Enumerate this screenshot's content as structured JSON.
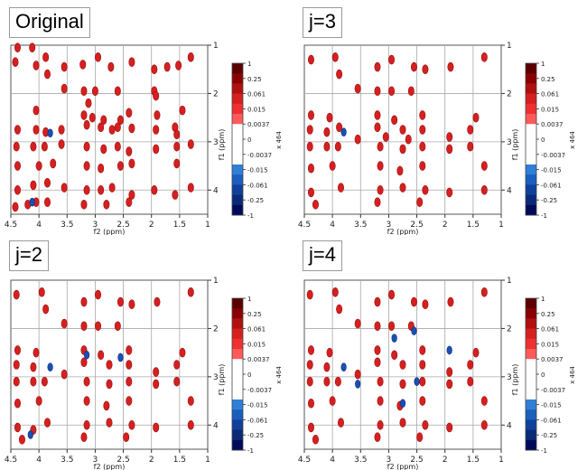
{
  "panels": [
    {
      "label": "Original"
    },
    {
      "label": "j=3"
    },
    {
      "label": "j=2"
    },
    {
      "label": "j=4"
    }
  ],
  "colorbar": {
    "scale_label": "x 464",
    "levels": [
      "1",
      "0.25",
      "0.061",
      "0.015",
      "0.0037",
      "0",
      "-0.0037",
      "-0.015",
      "-0.061",
      "-0.25",
      "-1"
    ],
    "colors": [
      "#5a0000",
      "#8b0000",
      "#b01010",
      "#d62020",
      "#ef3030",
      "#ff5a5a",
      "#ffffff",
      "#ffffff",
      "#ffffff",
      "#ffffff",
      "#2f7fd6",
      "#1a5fc0",
      "#10409a",
      "#0a2a78",
      "#000a5a"
    ]
  },
  "colors": {
    "positive": "#d42020",
    "negative": "#1a4fb5",
    "grid": "#a8a8a8"
  },
  "chart_data": [
    {
      "type": "scatter",
      "title": "Original",
      "xlabel": "f2 (ppm)",
      "ylabel": "f1 (ppm)",
      "xlim": [
        4.5,
        1
      ],
      "ylim": [
        1,
        4.5
      ],
      "x_reversed": true,
      "y_reversed": true,
      "xticks": [
        "4.5",
        "4",
        "3.5",
        "3",
        "2.5",
        "2",
        "1.5",
        "1"
      ],
      "yticks": [
        "1",
        "2",
        "3",
        "4"
      ],
      "grid": true,
      "peaks": [
        [
          4.38,
          1.05
        ],
        [
          4.12,
          1.05
        ],
        [
          4.42,
          1.35
        ],
        [
          4.05,
          1.42
        ],
        [
          3.88,
          1.25
        ],
        [
          3.85,
          1.6
        ],
        [
          3.55,
          1.45
        ],
        [
          3.22,
          1.4
        ],
        [
          2.95,
          1.25
        ],
        [
          2.72,
          1.45
        ],
        [
          2.35,
          1.35
        ],
        [
          1.95,
          1.5
        ],
        [
          1.72,
          1.45
        ],
        [
          1.52,
          1.42
        ],
        [
          1.3,
          1.25
        ],
        [
          3.55,
          1.9
        ],
        [
          3.2,
          1.95
        ],
        [
          3.0,
          1.95
        ],
        [
          2.6,
          1.95
        ],
        [
          1.95,
          1.95
        ],
        [
          1.92,
          2.05
        ],
        [
          3.12,
          2.2
        ],
        [
          4.05,
          2.35
        ],
        [
          3.2,
          2.45
        ],
        [
          3.05,
          2.5
        ],
        [
          2.85,
          2.55
        ],
        [
          2.55,
          2.55
        ],
        [
          2.4,
          2.4
        ],
        [
          1.9,
          2.45
        ],
        [
          1.45,
          2.35
        ],
        [
          4.38,
          2.75
        ],
        [
          4.05,
          2.75
        ],
        [
          3.88,
          2.8
        ],
        [
          3.6,
          2.75
        ],
        [
          3.15,
          2.65
        ],
        [
          2.9,
          2.7
        ],
        [
          2.7,
          2.75
        ],
        [
          2.6,
          2.7
        ],
        [
          2.35,
          2.72
        ],
        [
          1.92,
          2.75
        ],
        [
          1.58,
          2.7
        ],
        [
          1.55,
          2.85
        ],
        [
          4.4,
          3.1
        ],
        [
          4.1,
          3.1
        ],
        [
          3.9,
          3.1
        ],
        [
          3.6,
          3.05
        ],
        [
          3.15,
          3.1
        ],
        [
          2.85,
          3.15
        ],
        [
          2.6,
          3.1
        ],
        [
          2.4,
          3.2
        ],
        [
          1.92,
          3.15
        ],
        [
          1.55,
          3.1
        ],
        [
          1.3,
          3.05
        ],
        [
          4.38,
          3.5
        ],
        [
          4.0,
          3.5
        ],
        [
          3.75,
          3.45
        ],
        [
          3.15,
          3.5
        ],
        [
          2.9,
          3.55
        ],
        [
          2.55,
          3.5
        ],
        [
          2.35,
          3.45
        ],
        [
          1.55,
          3.45
        ],
        [
          4.38,
          4.0
        ],
        [
          4.1,
          3.9
        ],
        [
          3.85,
          3.85
        ],
        [
          3.55,
          3.95
        ],
        [
          3.15,
          4.0
        ],
        [
          2.9,
          4.0
        ],
        [
          2.7,
          3.95
        ],
        [
          2.35,
          4.1
        ],
        [
          1.95,
          4.0
        ],
        [
          1.58,
          4.1
        ],
        [
          1.3,
          3.95
        ],
        [
          4.42,
          4.35
        ],
        [
          4.2,
          4.3
        ],
        [
          4.05,
          4.25
        ],
        [
          3.85,
          4.25
        ],
        [
          3.2,
          4.3
        ],
        [
          2.8,
          4.3
        ],
        [
          2.4,
          4.25
        ]
      ],
      "negative_peaks": [
        [
          3.8,
          2.82
        ],
        [
          4.12,
          4.25
        ]
      ]
    },
    {
      "type": "scatter",
      "title": "j=3",
      "xlabel": "f2 (ppm)",
      "ylabel": "f1 (ppm)",
      "xlim": [
        4.5,
        1
      ],
      "ylim": [
        1,
        4.5
      ],
      "x_reversed": true,
      "y_reversed": true,
      "xticks": [
        "4.5",
        "4",
        "3.5",
        "3",
        "2.5",
        "2",
        "1.5",
        "1"
      ],
      "yticks": [
        "1",
        "2",
        "3",
        "4"
      ],
      "grid": true,
      "peaks": [
        [
          4.38,
          1.3
        ],
        [
          3.95,
          1.25
        ],
        [
          3.88,
          1.6
        ],
        [
          3.2,
          1.45
        ],
        [
          2.95,
          1.3
        ],
        [
          2.55,
          1.45
        ],
        [
          2.35,
          1.5
        ],
        [
          1.9,
          1.45
        ],
        [
          1.3,
          1.25
        ],
        [
          3.55,
          1.9
        ],
        [
          3.2,
          1.95
        ],
        [
          2.95,
          1.95
        ],
        [
          2.6,
          1.95
        ],
        [
          4.38,
          2.45
        ],
        [
          4.05,
          2.5
        ],
        [
          3.2,
          2.45
        ],
        [
          2.9,
          2.55
        ],
        [
          2.4,
          2.45
        ],
        [
          1.45,
          2.5
        ],
        [
          4.4,
          2.75
        ],
        [
          4.1,
          2.8
        ],
        [
          3.88,
          2.7
        ],
        [
          3.55,
          2.95
        ],
        [
          3.2,
          2.7
        ],
        [
          3.05,
          2.9
        ],
        [
          2.75,
          2.75
        ],
        [
          2.65,
          2.95
        ],
        [
          2.4,
          2.75
        ],
        [
          1.92,
          2.9
        ],
        [
          1.55,
          2.75
        ],
        [
          4.4,
          3.1
        ],
        [
          4.1,
          3.1
        ],
        [
          3.9,
          3.1
        ],
        [
          3.15,
          3.1
        ],
        [
          2.75,
          3.15
        ],
        [
          2.4,
          3.1
        ],
        [
          1.92,
          3.15
        ],
        [
          1.55,
          3.1
        ],
        [
          4.38,
          3.55
        ],
        [
          4.0,
          3.5
        ],
        [
          3.15,
          3.5
        ],
        [
          2.8,
          3.6
        ],
        [
          2.4,
          3.5
        ],
        [
          1.3,
          3.5
        ],
        [
          4.38,
          4.05
        ],
        [
          3.85,
          3.95
        ],
        [
          3.15,
          4.0
        ],
        [
          2.75,
          3.95
        ],
        [
          2.35,
          4.0
        ],
        [
          1.92,
          4.05
        ],
        [
          1.3,
          4.0
        ],
        [
          4.3,
          4.3
        ],
        [
          3.2,
          4.25
        ],
        [
          2.45,
          4.25
        ]
      ],
      "negative_peaks": [
        [
          3.8,
          2.8
        ]
      ]
    },
    {
      "type": "scatter",
      "title": "j=2",
      "xlabel": "f2 (ppm)",
      "ylabel": "f1 (ppm)",
      "xlim": [
        4.5,
        1
      ],
      "ylim": [
        1,
        4.5
      ],
      "x_reversed": true,
      "y_reversed": true,
      "xticks": [
        "4.5",
        "4",
        "3.5",
        "3",
        "2.5",
        "2",
        "1.5",
        "1"
      ],
      "yticks": [
        "1",
        "2",
        "3",
        "4"
      ],
      "grid": true,
      "peaks": [
        [
          4.4,
          1.3
        ],
        [
          3.95,
          1.25
        ],
        [
          3.88,
          1.6
        ],
        [
          3.2,
          1.45
        ],
        [
          2.95,
          1.3
        ],
        [
          2.55,
          1.45
        ],
        [
          2.35,
          1.5
        ],
        [
          1.9,
          1.45
        ],
        [
          1.3,
          1.25
        ],
        [
          3.55,
          1.9
        ],
        [
          3.2,
          1.95
        ],
        [
          2.95,
          1.95
        ],
        [
          2.6,
          1.95
        ],
        [
          4.38,
          2.45
        ],
        [
          4.05,
          2.5
        ],
        [
          3.2,
          2.45
        ],
        [
          2.9,
          2.55
        ],
        [
          2.4,
          2.45
        ],
        [
          1.45,
          2.5
        ],
        [
          4.4,
          2.75
        ],
        [
          4.1,
          2.8
        ],
        [
          3.55,
          2.95
        ],
        [
          3.2,
          2.7
        ],
        [
          2.75,
          2.75
        ],
        [
          2.4,
          2.75
        ],
        [
          1.92,
          2.9
        ],
        [
          1.55,
          2.75
        ],
        [
          4.4,
          3.1
        ],
        [
          4.1,
          3.1
        ],
        [
          3.9,
          3.1
        ],
        [
          3.15,
          3.1
        ],
        [
          2.75,
          3.15
        ],
        [
          2.4,
          3.1
        ],
        [
          1.92,
          3.15
        ],
        [
          1.55,
          3.1
        ],
        [
          4.38,
          3.55
        ],
        [
          4.0,
          3.5
        ],
        [
          3.15,
          3.5
        ],
        [
          2.8,
          3.6
        ],
        [
          2.4,
          3.5
        ],
        [
          1.3,
          3.5
        ],
        [
          4.38,
          4.05
        ],
        [
          4.1,
          4.1
        ],
        [
          3.85,
          3.95
        ],
        [
          3.15,
          4.0
        ],
        [
          2.75,
          3.95
        ],
        [
          2.35,
          4.0
        ],
        [
          1.92,
          4.05
        ],
        [
          1.3,
          4.0
        ],
        [
          4.3,
          4.3
        ],
        [
          3.2,
          4.25
        ],
        [
          2.45,
          4.25
        ]
      ],
      "negative_peaks": [
        [
          3.8,
          2.8
        ],
        [
          3.15,
          2.55
        ],
        [
          2.55,
          2.6
        ],
        [
          4.15,
          4.2
        ]
      ]
    },
    {
      "type": "scatter",
      "title": "j=4",
      "xlabel": "f2 (ppm)",
      "ylabel": "f1 (ppm)",
      "xlim": [
        4.5,
        1
      ],
      "ylim": [
        1,
        4.5
      ],
      "x_reversed": true,
      "y_reversed": true,
      "xticks": [
        "4.5",
        "4",
        "3.5",
        "3",
        "2.5",
        "2",
        "1.5",
        "1"
      ],
      "yticks": [
        "1",
        "2",
        "3",
        "4"
      ],
      "grid": true,
      "peaks": [
        [
          4.4,
          1.3
        ],
        [
          3.95,
          1.25
        ],
        [
          3.88,
          1.6
        ],
        [
          3.2,
          1.45
        ],
        [
          2.95,
          1.3
        ],
        [
          2.55,
          1.45
        ],
        [
          2.35,
          1.5
        ],
        [
          1.9,
          1.45
        ],
        [
          1.3,
          1.25
        ],
        [
          3.55,
          1.9
        ],
        [
          3.2,
          1.95
        ],
        [
          2.95,
          1.95
        ],
        [
          2.6,
          1.95
        ],
        [
          4.38,
          2.45
        ],
        [
          4.05,
          2.5
        ],
        [
          3.2,
          2.45
        ],
        [
          2.9,
          2.55
        ],
        [
          2.4,
          2.45
        ],
        [
          1.45,
          2.5
        ],
        [
          4.4,
          2.75
        ],
        [
          4.1,
          2.8
        ],
        [
          3.55,
          2.95
        ],
        [
          3.2,
          2.7
        ],
        [
          2.75,
          2.75
        ],
        [
          2.4,
          2.75
        ],
        [
          1.92,
          2.9
        ],
        [
          1.55,
          2.75
        ],
        [
          4.4,
          3.1
        ],
        [
          4.1,
          3.1
        ],
        [
          3.9,
          3.1
        ],
        [
          3.15,
          3.1
        ],
        [
          2.75,
          3.15
        ],
        [
          2.4,
          3.1
        ],
        [
          1.92,
          3.15
        ],
        [
          1.55,
          3.1
        ],
        [
          4.38,
          3.55
        ],
        [
          4.0,
          3.5
        ],
        [
          3.15,
          3.5
        ],
        [
          2.8,
          3.6
        ],
        [
          2.4,
          3.5
        ],
        [
          1.3,
          3.5
        ],
        [
          4.38,
          4.05
        ],
        [
          3.85,
          3.95
        ],
        [
          3.15,
          4.0
        ],
        [
          2.75,
          3.95
        ],
        [
          2.35,
          4.0
        ],
        [
          1.92,
          4.05
        ],
        [
          1.3,
          4.0
        ],
        [
          4.3,
          4.3
        ],
        [
          3.2,
          4.25
        ],
        [
          2.45,
          4.25
        ]
      ],
      "negative_peaks": [
        [
          3.8,
          2.8
        ],
        [
          2.9,
          2.2
        ],
        [
          2.55,
          2.05
        ],
        [
          1.92,
          2.45
        ],
        [
          2.75,
          3.55
        ],
        [
          2.5,
          3.1
        ],
        [
          3.55,
          3.15
        ]
      ]
    }
  ]
}
